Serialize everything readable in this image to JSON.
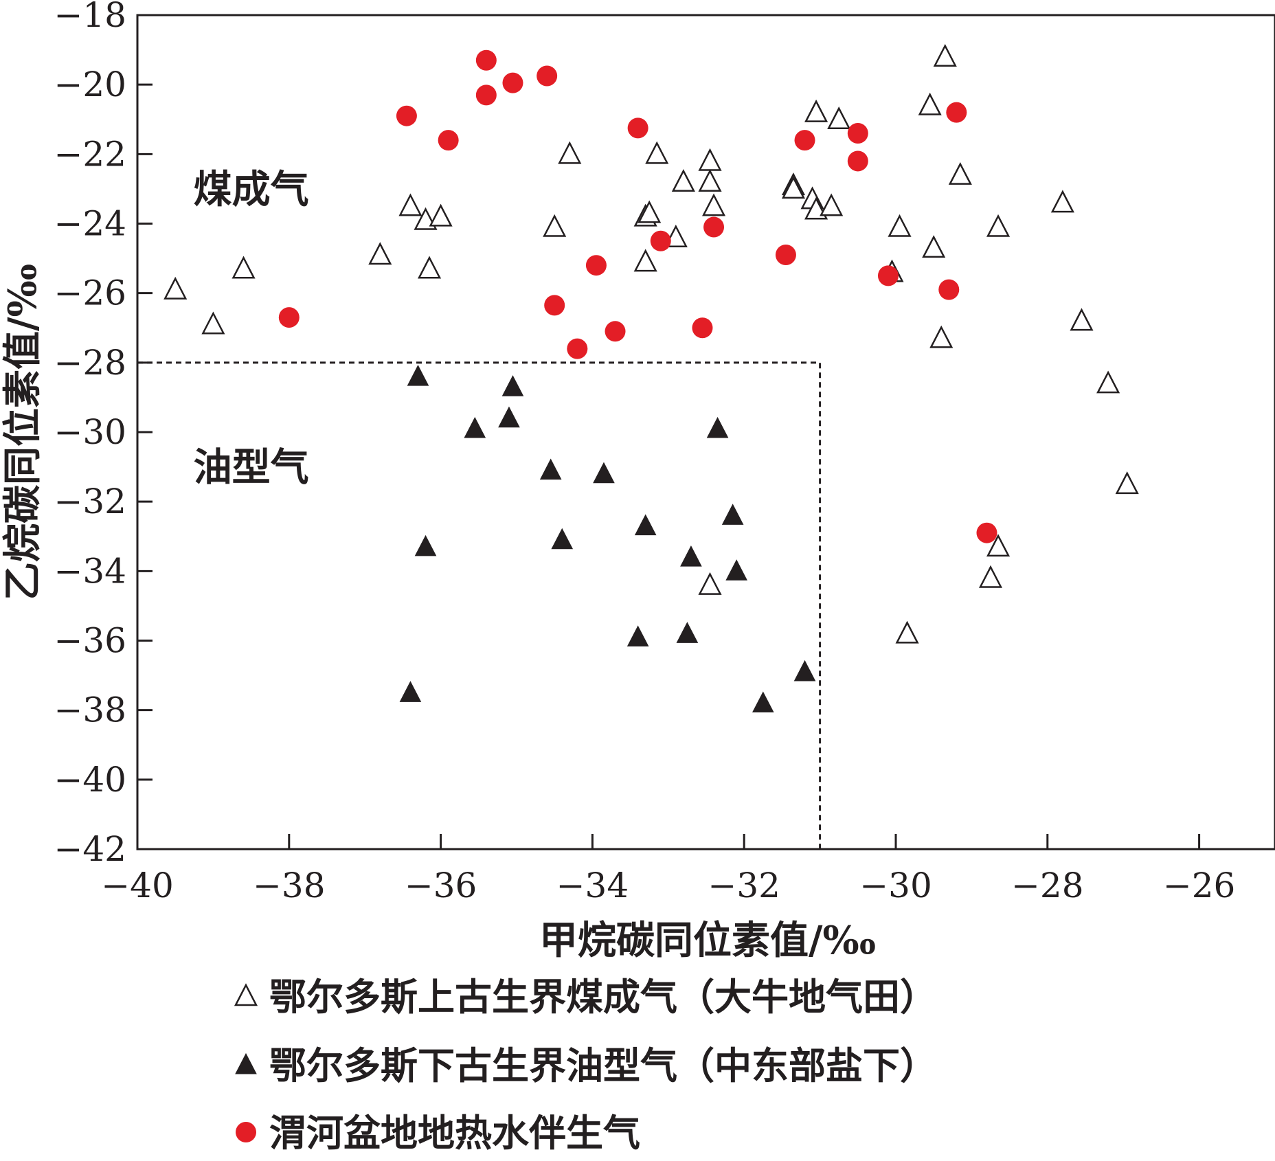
{
  "chart_data": {
    "type": "scatter",
    "xlabel": "甲烷碳同位素值/‰",
    "ylabel": "乙烷碳同位素值/‰",
    "xlim": [
      -40,
      -25
    ],
    "ylim": [
      -42,
      -18
    ],
    "x_ticks": [
      -40,
      -38,
      -36,
      -34,
      -32,
      -30,
      -28,
      -26
    ],
    "y_ticks": [
      -18,
      -20,
      -22,
      -24,
      -26,
      -28,
      -30,
      -32,
      -34,
      -36,
      -38,
      -40,
      -42
    ],
    "x_tick_labels": [
      "−40",
      "−38",
      "−36",
      "−34",
      "−32",
      "−30",
      "−28",
      "−26"
    ],
    "y_tick_labels": [
      "−18",
      "−20",
      "−22",
      "−24",
      "−26",
      "−28",
      "−30",
      "−32",
      "−34",
      "−36",
      "−38",
      "−40",
      "−42"
    ],
    "grid": false,
    "legend_position": "bottom",
    "regions": [
      {
        "label": "煤成气",
        "at": [
          -38.5,
          -23
        ]
      },
      {
        "label": "油型气",
        "at": [
          -38.5,
          -31
        ]
      }
    ],
    "boundary": {
      "style": "dashed",
      "points": [
        [
          -40,
          -28
        ],
        [
          -31,
          -28
        ],
        [
          -31,
          -42
        ]
      ]
    },
    "series": [
      {
        "name": "鄂尔多斯上古生界煤成气（大牛地气田）",
        "marker": "open-triangle",
        "color": "#231f20",
        "points": [
          [
            -39.5,
            -25.9
          ],
          [
            -39.0,
            -26.9
          ],
          [
            -38.6,
            -25.3
          ],
          [
            -36.8,
            -24.9
          ],
          [
            -36.4,
            -23.5
          ],
          [
            -36.2,
            -23.9
          ],
          [
            -36.0,
            -23.8
          ],
          [
            -36.15,
            -25.3
          ],
          [
            -34.5,
            -24.1
          ],
          [
            -34.3,
            -22.0
          ],
          [
            -33.3,
            -23.8
          ],
          [
            -33.25,
            -23.7
          ],
          [
            -33.3,
            -25.1
          ],
          [
            -33.15,
            -22.0
          ],
          [
            -32.9,
            -24.4
          ],
          [
            -32.8,
            -22.8
          ],
          [
            -32.45,
            -22.2
          ],
          [
            -32.45,
            -22.8
          ],
          [
            -32.4,
            -23.5
          ],
          [
            -32.45,
            -34.4
          ],
          [
            -31.35,
            -22.9
          ],
          [
            -31.35,
            -23.0
          ],
          [
            -31.1,
            -23.3
          ],
          [
            -31.05,
            -23.6
          ],
          [
            -31.05,
            -20.8
          ],
          [
            -30.85,
            -23.5
          ],
          [
            -30.75,
            -21.0
          ],
          [
            -30.05,
            -25.4
          ],
          [
            -29.95,
            -24.1
          ],
          [
            -29.55,
            -20.6
          ],
          [
            -29.5,
            -24.7
          ],
          [
            -29.4,
            -27.3
          ],
          [
            -29.35,
            -19.2
          ],
          [
            -29.15,
            -22.6
          ],
          [
            -28.75,
            -34.2
          ],
          [
            -28.65,
            -33.3
          ],
          [
            -28.65,
            -24.1
          ],
          [
            -27.8,
            -23.4
          ],
          [
            -27.55,
            -26.8
          ],
          [
            -27.2,
            -28.6
          ],
          [
            -26.95,
            -31.5
          ],
          [
            -29.85,
            -35.8
          ]
        ]
      },
      {
        "name": "鄂尔多斯下古生界油型气（中东部盐下）",
        "marker": "filled-triangle",
        "color": "#231f20",
        "points": [
          [
            -36.3,
            -28.4
          ],
          [
            -36.4,
            -37.5
          ],
          [
            -36.2,
            -33.3
          ],
          [
            -35.55,
            -29.9
          ],
          [
            -35.1,
            -29.6
          ],
          [
            -35.05,
            -28.7
          ],
          [
            -34.55,
            -31.1
          ],
          [
            -34.4,
            -33.1
          ],
          [
            -33.85,
            -31.2
          ],
          [
            -33.4,
            -35.9
          ],
          [
            -33.3,
            -32.7
          ],
          [
            -32.75,
            -35.8
          ],
          [
            -32.7,
            -33.6
          ],
          [
            -32.35,
            -29.9
          ],
          [
            -32.15,
            -32.4
          ],
          [
            -32.1,
            -34.0
          ],
          [
            -31.75,
            -37.8
          ],
          [
            -31.2,
            -36.9
          ]
        ]
      },
      {
        "name": "渭河盆地地热水伴生气",
        "marker": "filled-circle",
        "color": "#e31e26",
        "points": [
          [
            -38.0,
            -26.7
          ],
          [
            -36.45,
            -20.9
          ],
          [
            -35.9,
            -21.6
          ],
          [
            -35.4,
            -19.3
          ],
          [
            -35.4,
            -20.3
          ],
          [
            -35.05,
            -19.95
          ],
          [
            -34.6,
            -19.75
          ],
          [
            -34.5,
            -26.35
          ],
          [
            -34.2,
            -27.6
          ],
          [
            -33.95,
            -25.2
          ],
          [
            -33.7,
            -27.1
          ],
          [
            -33.4,
            -21.25
          ],
          [
            -33.1,
            -24.5
          ],
          [
            -32.55,
            -27.0
          ],
          [
            -32.4,
            -24.1
          ],
          [
            -31.45,
            -24.9
          ],
          [
            -31.2,
            -21.6
          ],
          [
            -30.5,
            -21.4
          ],
          [
            -30.5,
            -22.2
          ],
          [
            -30.1,
            -25.5
          ],
          [
            -29.3,
            -25.9
          ],
          [
            -29.2,
            -20.8
          ],
          [
            -28.8,
            -32.9
          ]
        ]
      }
    ]
  }
}
